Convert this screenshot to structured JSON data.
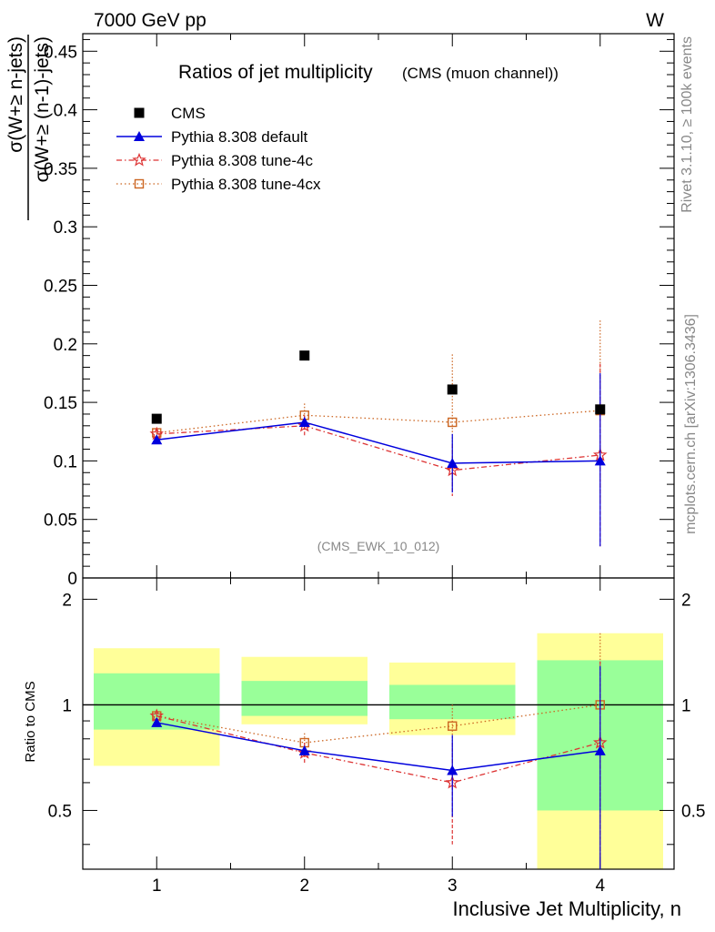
{
  "header": {
    "left": "7000 GeV pp",
    "right": "W"
  },
  "side_labels": {
    "rivet": "Rivet 3.1.10, ≥ 100k events",
    "mcplots": "mcplots.cern.ch [arXiv:1306.3436]"
  },
  "colors": {
    "cms": "#000000",
    "default": "#0000dd",
    "tune4c": "#dd3333",
    "tune4cx": "#cc6622",
    "band_inner": "#99ff99",
    "band_outer": "#ffff99"
  },
  "chart_data": [
    {
      "type": "scatter",
      "title": "Ratios of jet multiplicity",
      "subtitle": "(CMS (muon channel))",
      "ylabel_num": "σ(W+≥ n-jets)",
      "ylabel_den": "σ(W+≥ (n-1)-jets)",
      "watermark": "(CMS_EWK_10_012)",
      "ylim": [
        0,
        0.465
      ],
      "xlim": [
        0.5,
        4.5
      ],
      "yticks": [
        "0",
        "0.05",
        "0.1",
        "0.15",
        "0.2",
        "0.25",
        "0.3",
        "0.35",
        "0.4",
        "0.45"
      ],
      "ytick_values": [
        0,
        0.05,
        0.1,
        0.15,
        0.2,
        0.25,
        0.3,
        0.35,
        0.4,
        0.45
      ],
      "legend_position": "top-left",
      "x": [
        1,
        2,
        3,
        4
      ],
      "series": [
        {
          "name": "CMS",
          "key": "cms",
          "values": [
            0.136,
            0.19,
            0.161,
            0.144
          ],
          "err_low": [
            0.001,
            0.001,
            0.001,
            0.001
          ],
          "err_high": [
            0.001,
            0.001,
            0.001,
            0.001
          ]
        },
        {
          "name": "Pythia 8.308 default",
          "key": "default",
          "values": [
            0.118,
            0.133,
            0.098,
            0.1
          ],
          "err_low": [
            0.002,
            0.004,
            0.025,
            0.073
          ],
          "err_high": [
            0.002,
            0.004,
            0.025,
            0.075
          ]
        },
        {
          "name": "Pythia 8.308 tune-4c",
          "key": "tune4c",
          "values": [
            0.123,
            0.13,
            0.092,
            0.105
          ],
          "err_low": [
            0.004,
            0.009,
            0.022,
            0.078
          ],
          "err_high": [
            0.004,
            0.009,
            0.022,
            0.078
          ]
        },
        {
          "name": "Pythia 8.308 tune-4cx",
          "key": "tune4cx",
          "values": [
            0.124,
            0.139,
            0.133,
            0.143
          ],
          "err_low": [
            0.003,
            0.01,
            0.058,
            0.077
          ],
          "err_high": [
            0.003,
            0.01,
            0.058,
            0.077
          ]
        }
      ]
    },
    {
      "type": "scatter",
      "ylabel": "Ratio to CMS",
      "xlabel": "Inclusive Jet Multiplicity, n",
      "ylim": [
        0.34,
        2.3
      ],
      "xlim": [
        0.5,
        4.5
      ],
      "xticks": [
        "1",
        "2",
        "3",
        "4"
      ],
      "yticks": [
        "0.5",
        "1",
        "2"
      ],
      "ytick_values": [
        0.5,
        1,
        2
      ],
      "bands": {
        "bins": [
          [
            0.5,
            1.5
          ],
          [
            1.5,
            2.5
          ],
          [
            2.5,
            3.5
          ],
          [
            3.5,
            4.5
          ]
        ],
        "inner": [
          [
            0.85,
            1.23
          ],
          [
            0.93,
            1.17
          ],
          [
            0.91,
            1.14
          ],
          [
            0.5,
            1.34
          ]
        ],
        "outer": [
          [
            0.67,
            1.45
          ],
          [
            0.88,
            1.37
          ],
          [
            0.82,
            1.32
          ],
          [
            0.34,
            1.6
          ]
        ]
      },
      "x": [
        1,
        2,
        3,
        4
      ],
      "series": [
        {
          "name": "Pythia 8.308 default",
          "key": "default",
          "values": [
            0.89,
            0.74,
            0.65,
            0.74
          ],
          "err_low": [
            0.01,
            0.02,
            0.17,
            0.45
          ],
          "err_high": [
            0.01,
            0.02,
            0.17,
            0.55
          ]
        },
        {
          "name": "Pythia 8.308 tune-4c",
          "key": "tune4c",
          "values": [
            0.93,
            0.73,
            0.6,
            0.78
          ],
          "err_low": [
            0.02,
            0.05,
            0.2,
            0.5
          ],
          "err_high": [
            0.02,
            0.05,
            0.18,
            0.55
          ]
        },
        {
          "name": "Pythia 8.308 tune-4cx",
          "key": "tune4cx",
          "values": [
            0.93,
            0.78,
            0.87,
            1.0
          ],
          "err_low": [
            0.02,
            0.05,
            0.3,
            0.65
          ],
          "err_high": [
            0.02,
            0.05,
            0.13,
            0.6
          ]
        }
      ]
    }
  ]
}
